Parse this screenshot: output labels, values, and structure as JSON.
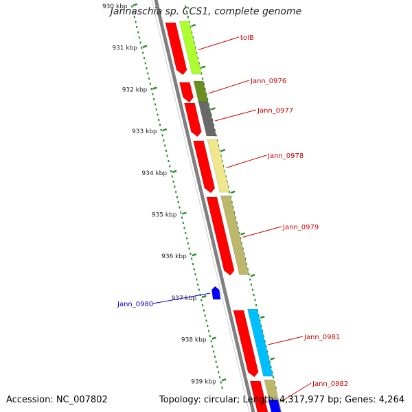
{
  "title": "Jannaschia sp. CCS1, complete genome",
  "footer": {
    "accession": "Accession: NC_007802",
    "topology": "Topology: circular; Length: 4,317,977 bp; Genes: 4,264"
  },
  "ticks": [
    {
      "label": "930 kbp"
    },
    {
      "label": "931 kbp"
    },
    {
      "label": "932 kbp"
    },
    {
      "label": "933 kbp"
    },
    {
      "label": "934 kbp"
    },
    {
      "label": "935 kbp"
    },
    {
      "label": "936 kbp"
    },
    {
      "label": "937 kbp"
    },
    {
      "label": "938 kbp"
    },
    {
      "label": "939 kbp"
    }
  ],
  "genes": [
    {
      "name": "tolB",
      "color": "#adff2f",
      "strand": "forward"
    },
    {
      "name": "Jann_0976",
      "color": "#6b8e23",
      "strand": "forward"
    },
    {
      "name": "Jann_0977",
      "color": "#696969",
      "strand": "forward"
    },
    {
      "name": "Jann_0978",
      "color": "#f0e68c",
      "strand": "forward"
    },
    {
      "name": "Jann_0979",
      "color": "#bdb76b",
      "strand": "forward"
    },
    {
      "name": "Jann_0980",
      "color": "#0000ff",
      "strand": "reverse"
    },
    {
      "name": "Jann_0981",
      "color": "#00bfff",
      "strand": "forward"
    },
    {
      "name": "Jann_0982",
      "color": "#bdb76b",
      "strand": "forward"
    }
  ],
  "colors": {
    "cds": "#ff0000",
    "backbone": "#808080",
    "tick": "#228b22",
    "label_forward": "#cc0000",
    "label_reverse": "#0000cc"
  }
}
